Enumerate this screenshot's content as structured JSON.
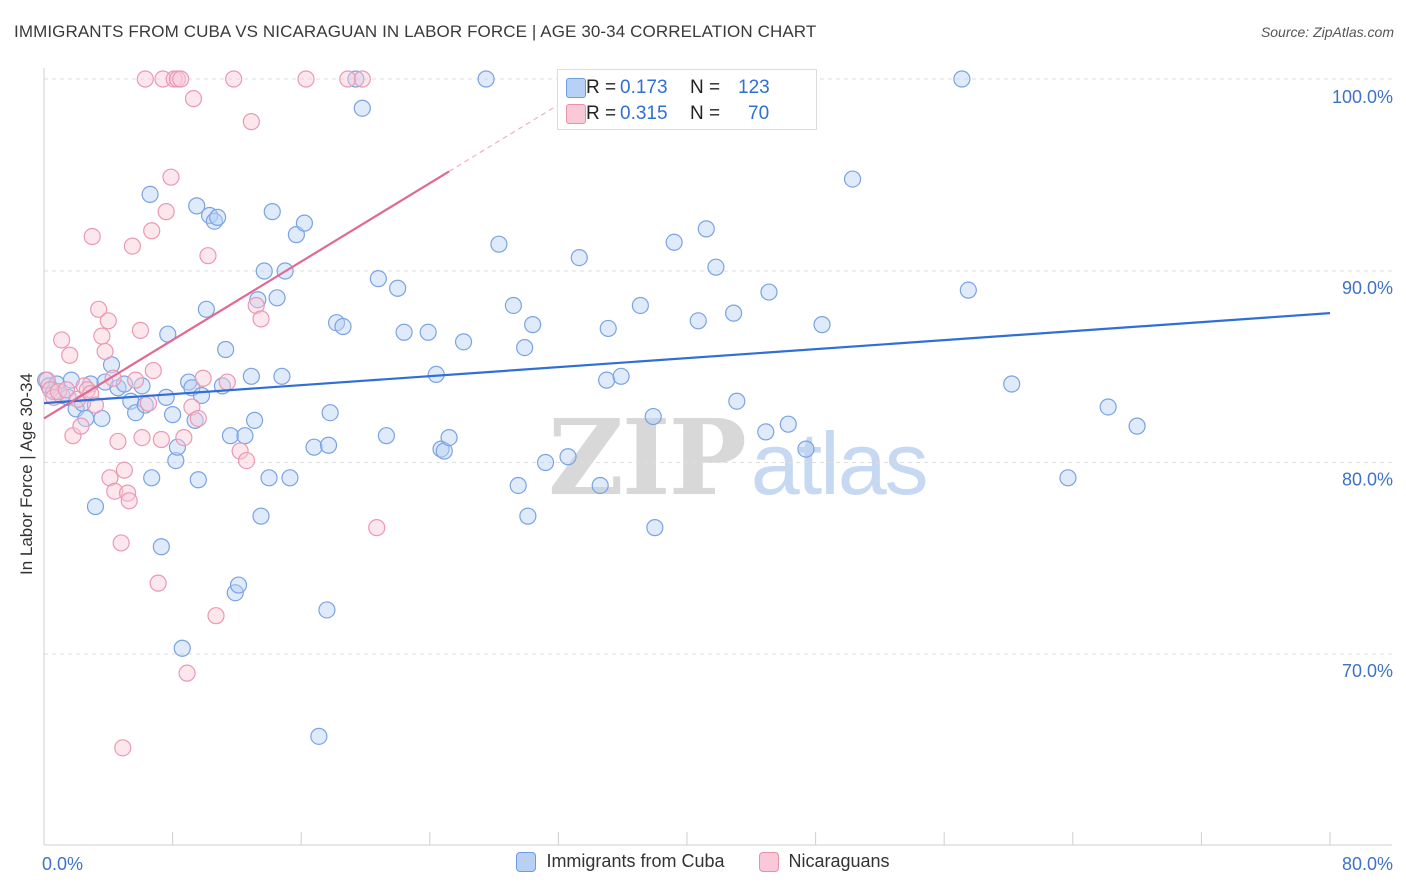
{
  "title": "IMMIGRANTS FROM CUBA VS NICARAGUAN IN LABOR FORCE | AGE 30-34 CORRELATION CHART",
  "source": "Source: ZipAtlas.com",
  "watermark": {
    "zip": "ZIP",
    "atlas": "atlas"
  },
  "legend_stats": [
    {
      "r_label": "R =",
      "r_value": "0.173",
      "n_label": "N =",
      "n_value": "123"
    },
    {
      "r_label": "R =",
      "r_value": "0.315",
      "n_label": "N =",
      "n_value": "70"
    }
  ],
  "legend_bottom": [
    {
      "label": "Immigrants from Cuba"
    },
    {
      "label": "Nicaraguans"
    }
  ],
  "colors": {
    "blue": "#2f6fd6",
    "blue_fill": "#b8d0f3",
    "pink": "#e06a92",
    "pink_fill": "#f9c9d8",
    "tick_text": "#3f72c7"
  },
  "chart_data": {
    "type": "scatter",
    "title": "IMMIGRANTS FROM CUBA VS NICARAGUAN IN LABOR FORCE | AGE 30-34 CORRELATION CHART",
    "xlabel": "",
    "ylabel": "In Labor Force | Age 30-34",
    "xlim": [
      0,
      80
    ],
    "ylim": [
      60,
      101
    ],
    "x_tick_labels": [
      {
        "value": 0,
        "label": "0.0%"
      },
      {
        "value": 80,
        "label": "80.0%"
      }
    ],
    "y_tick_labels": [
      {
        "value": 70,
        "label": "70.0%"
      },
      {
        "value": 80,
        "label": "80.0%"
      },
      {
        "value": 90,
        "label": "90.0%"
      },
      {
        "value": 100,
        "label": "100.0%"
      }
    ],
    "series": [
      {
        "name": "Immigrants from Cuba",
        "color": "#2f6fd6",
        "trend": {
          "x": [
            0,
            80
          ],
          "y": [
            83.1,
            87.8
          ],
          "dashed_to_x": null
        },
        "points": [
          [
            0.1,
            84.3
          ],
          [
            0.3,
            84.0
          ],
          [
            0.6,
            83.7
          ],
          [
            0.8,
            84.1
          ],
          [
            1.1,
            83.5
          ],
          [
            1.5,
            83.4
          ],
          [
            1.7,
            84.3
          ],
          [
            2.0,
            82.8
          ],
          [
            2.4,
            83.1
          ],
          [
            2.6,
            82.3
          ],
          [
            2.9,
            84.1
          ],
          [
            3.2,
            77.7
          ],
          [
            3.6,
            82.3
          ],
          [
            3.8,
            84.2
          ],
          [
            4.2,
            85.1
          ],
          [
            4.6,
            83.9
          ],
          [
            5.0,
            84.1
          ],
          [
            5.4,
            83.2
          ],
          [
            5.7,
            82.6
          ],
          [
            6.1,
            84.0
          ],
          [
            6.3,
            83.0
          ],
          [
            6.6,
            94.0
          ],
          [
            6.7,
            79.2
          ],
          [
            7.3,
            75.6
          ],
          [
            7.6,
            83.4
          ],
          [
            7.7,
            86.7
          ],
          [
            8.0,
            82.5
          ],
          [
            8.2,
            80.1
          ],
          [
            8.3,
            80.8
          ],
          [
            8.6,
            70.3
          ],
          [
            9.0,
            84.2
          ],
          [
            9.2,
            83.9
          ],
          [
            9.4,
            82.2
          ],
          [
            9.5,
            93.4
          ],
          [
            9.6,
            79.1
          ],
          [
            9.8,
            83.5
          ],
          [
            10.1,
            88.0
          ],
          [
            10.3,
            92.9
          ],
          [
            10.6,
            92.6
          ],
          [
            10.8,
            92.8
          ],
          [
            11.1,
            84.0
          ],
          [
            11.3,
            85.9
          ],
          [
            11.6,
            81.4
          ],
          [
            11.9,
            73.2
          ],
          [
            12.1,
            73.6
          ],
          [
            12.5,
            81.4
          ],
          [
            12.9,
            84.5
          ],
          [
            13.1,
            82.2
          ],
          [
            13.3,
            88.5
          ],
          [
            13.5,
            77.2
          ],
          [
            13.7,
            90.0
          ],
          [
            14.0,
            79.2
          ],
          [
            14.2,
            93.1
          ],
          [
            14.5,
            88.6
          ],
          [
            14.8,
            84.5
          ],
          [
            15.0,
            90.0
          ],
          [
            15.3,
            79.2
          ],
          [
            15.7,
            91.9
          ],
          [
            16.2,
            92.5
          ],
          [
            16.8,
            80.8
          ],
          [
            17.1,
            65.7
          ],
          [
            17.6,
            72.3
          ],
          [
            17.7,
            80.9
          ],
          [
            17.8,
            82.6
          ],
          [
            18.2,
            87.3
          ],
          [
            18.6,
            87.1
          ],
          [
            19.4,
            100.0
          ],
          [
            19.8,
            98.5
          ],
          [
            20.8,
            89.6
          ],
          [
            21.3,
            81.4
          ],
          [
            22.0,
            89.1
          ],
          [
            22.4,
            86.8
          ],
          [
            23.9,
            86.8
          ],
          [
            24.4,
            84.6
          ],
          [
            24.7,
            80.7
          ],
          [
            24.9,
            80.6
          ],
          [
            25.2,
            81.3
          ],
          [
            26.1,
            86.3
          ],
          [
            27.5,
            100.0
          ],
          [
            28.3,
            91.4
          ],
          [
            29.2,
            88.2
          ],
          [
            29.5,
            78.8
          ],
          [
            29.9,
            86.0
          ],
          [
            30.1,
            77.2
          ],
          [
            30.4,
            87.2
          ],
          [
            31.2,
            80.0
          ],
          [
            32.6,
            80.3
          ],
          [
            33.3,
            90.7
          ],
          [
            34.6,
            78.8
          ],
          [
            35.0,
            84.3
          ],
          [
            35.1,
            87.0
          ],
          [
            35.9,
            84.5
          ],
          [
            37.1,
            88.2
          ],
          [
            37.9,
            82.4
          ],
          [
            38.0,
            76.6
          ],
          [
            39.2,
            91.5
          ],
          [
            40.7,
            87.4
          ],
          [
            41.2,
            92.2
          ],
          [
            41.8,
            90.2
          ],
          [
            42.9,
            87.8
          ],
          [
            43.1,
            83.2
          ],
          [
            44.9,
            81.6
          ],
          [
            45.1,
            88.9
          ],
          [
            46.3,
            82.0
          ],
          [
            47.4,
            80.7
          ],
          [
            48.4,
            87.2
          ],
          [
            50.3,
            94.8
          ],
          [
            57.1,
            100.0
          ],
          [
            57.5,
            89.0
          ],
          [
            60.2,
            84.1
          ],
          [
            63.7,
            79.2
          ],
          [
            66.2,
            82.9
          ],
          [
            68.0,
            81.9
          ]
        ]
      },
      {
        "name": "Nicaraguans",
        "color": "#e06a92",
        "trend": {
          "x": [
            0,
            25.2
          ],
          "y": [
            82.3,
            95.2
          ],
          "dashed_to_x": 33.5
        },
        "points": [
          [
            0.2,
            84.3
          ],
          [
            0.4,
            83.8
          ],
          [
            0.6,
            83.4
          ],
          [
            0.9,
            83.7
          ],
          [
            1.1,
            86.4
          ],
          [
            1.4,
            83.8
          ],
          [
            1.6,
            85.6
          ],
          [
            1.8,
            81.4
          ],
          [
            2.1,
            83.3
          ],
          [
            2.3,
            81.9
          ],
          [
            2.5,
            84.0
          ],
          [
            2.7,
            83.8
          ],
          [
            2.9,
            83.6
          ],
          [
            3.0,
            91.8
          ],
          [
            3.2,
            83.0
          ],
          [
            3.4,
            88.0
          ],
          [
            3.6,
            86.6
          ],
          [
            3.8,
            85.8
          ],
          [
            4.0,
            87.4
          ],
          [
            4.1,
            79.2
          ],
          [
            4.3,
            84.4
          ],
          [
            4.4,
            78.5
          ],
          [
            4.6,
            81.1
          ],
          [
            4.8,
            75.8
          ],
          [
            5.0,
            79.6
          ],
          [
            5.2,
            78.4
          ],
          [
            5.3,
            78.0
          ],
          [
            5.5,
            91.3
          ],
          [
            5.7,
            84.3
          ],
          [
            6.0,
            86.9
          ],
          [
            6.1,
            81.3
          ],
          [
            6.3,
            100.0
          ],
          [
            6.5,
            83.1
          ],
          [
            6.7,
            92.1
          ],
          [
            6.8,
            84.8
          ],
          [
            7.1,
            73.7
          ],
          [
            7.3,
            81.2
          ],
          [
            7.4,
            100.0
          ],
          [
            7.6,
            93.1
          ],
          [
            7.9,
            94.9
          ],
          [
            8.1,
            100.0
          ],
          [
            8.3,
            100.0
          ],
          [
            8.5,
            100.0
          ],
          [
            8.7,
            81.3
          ],
          [
            8.9,
            69.0
          ],
          [
            9.2,
            82.9
          ],
          [
            9.3,
            99.0
          ],
          [
            9.6,
            82.3
          ],
          [
            9.9,
            84.4
          ],
          [
            10.2,
            90.8
          ],
          [
            10.7,
            72.0
          ],
          [
            11.4,
            84.2
          ],
          [
            11.8,
            100.0
          ],
          [
            12.2,
            80.6
          ],
          [
            12.6,
            80.1
          ],
          [
            12.9,
            97.8
          ],
          [
            13.2,
            88.2
          ],
          [
            13.5,
            87.5
          ],
          [
            16.3,
            100.0
          ],
          [
            18.9,
            100.0
          ],
          [
            19.8,
            100.0
          ],
          [
            20.7,
            76.6
          ],
          [
            4.9,
            65.1
          ]
        ]
      }
    ]
  }
}
